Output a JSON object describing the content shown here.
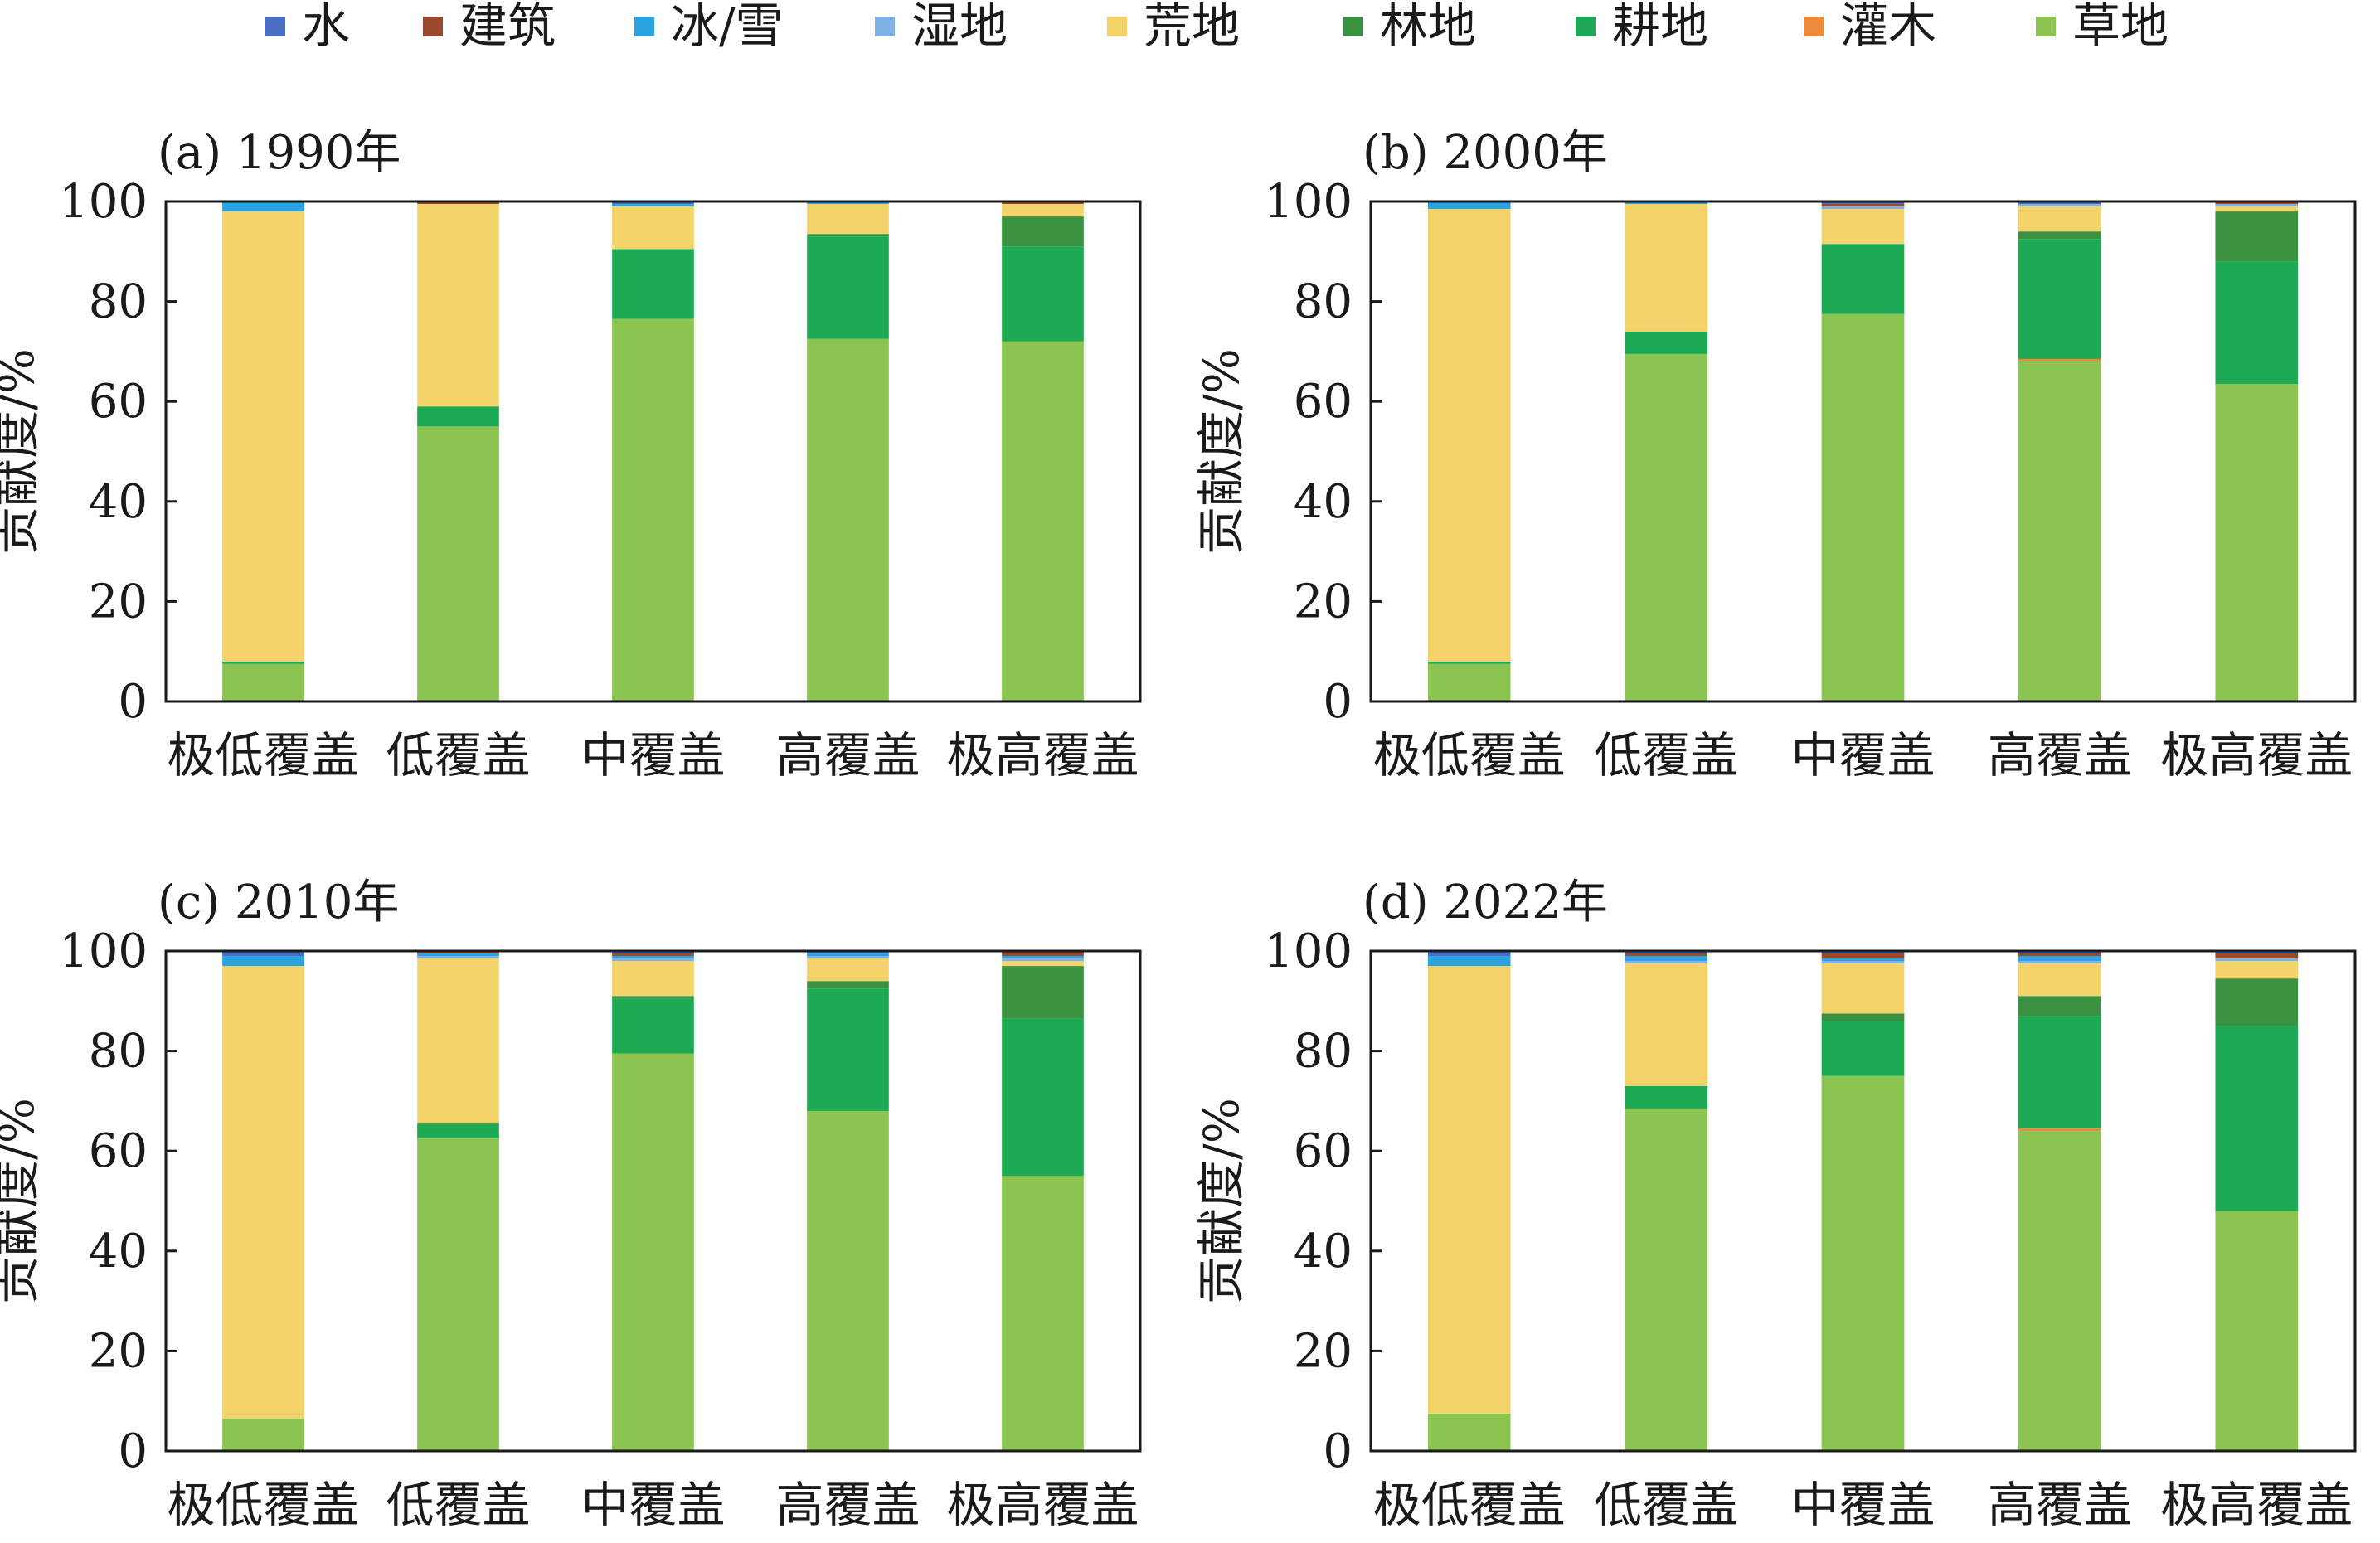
{
  "legend": [
    {
      "name": "水",
      "color": "#4a6fc2"
    },
    {
      "name": "建筑",
      "color": "#9a4a2c"
    },
    {
      "name": "冰/雪",
      "color": "#2aa3e0"
    },
    {
      "name": "湿地",
      "color": "#7fb2e6"
    },
    {
      "name": "荒地",
      "color": "#f5d36b"
    },
    {
      "name": "林地",
      "color": "#3a9140"
    },
    {
      "name": "耕地",
      "color": "#1eaa55"
    },
    {
      "name": "灌木",
      "color": "#ee8a3a"
    },
    {
      "name": "草地",
      "color": "#8cc452"
    }
  ],
  "chart_data": [
    {
      "type": "bar",
      "stacked": true,
      "title": "(a) 1990年",
      "ylabel": "贡献度/%",
      "ylim": [
        0,
        100
      ],
      "yticks": [
        0,
        20,
        40,
        60,
        80,
        100
      ],
      "categories": [
        "极低覆盖",
        "低覆盖",
        "中覆盖",
        "高覆盖",
        "极高覆盖"
      ],
      "series": [
        {
          "name": "草地",
          "values": [
            7.5,
            55,
            76.5,
            72.5,
            72
          ]
        },
        {
          "name": "灌木",
          "values": [
            0,
            0,
            0,
            0,
            0
          ]
        },
        {
          "name": "耕地",
          "values": [
            0.5,
            4,
            14,
            20.5,
            19
          ]
        },
        {
          "name": "林地",
          "values": [
            0,
            0,
            0,
            0.5,
            6
          ]
        },
        {
          "name": "荒地",
          "values": [
            90,
            40.5,
            8.5,
            6,
            2.5
          ]
        },
        {
          "name": "湿地",
          "values": [
            0,
            0,
            0,
            0,
            0
          ]
        },
        {
          "name": "冰/雪",
          "values": [
            2,
            0,
            0.5,
            0.5,
            0
          ]
        },
        {
          "name": "建筑",
          "values": [
            0,
            0.5,
            0,
            0,
            0.5
          ]
        },
        {
          "name": "水",
          "values": [
            0,
            0,
            0.5,
            0,
            0
          ]
        }
      ]
    },
    {
      "type": "bar",
      "stacked": true,
      "title": "(b) 2000年",
      "ylabel": "贡献度/%",
      "ylim": [
        0,
        100
      ],
      "yticks": [
        0,
        20,
        40,
        60,
        80,
        100
      ],
      "categories": [
        "极低覆盖",
        "低覆盖",
        "中覆盖",
        "高覆盖",
        "极高覆盖"
      ],
      "series": [
        {
          "name": "草地",
          "values": [
            7.5,
            69.5,
            77.5,
            68,
            63.5
          ]
        },
        {
          "name": "灌木",
          "values": [
            0,
            0,
            0,
            0.5,
            0
          ]
        },
        {
          "name": "耕地",
          "values": [
            0.5,
            4.5,
            14,
            24,
            24.5
          ]
        },
        {
          "name": "林地",
          "values": [
            0,
            0,
            0,
            1.5,
            10
          ]
        },
        {
          "name": "荒地",
          "values": [
            90.5,
            25.5,
            7,
            5,
            1
          ]
        },
        {
          "name": "湿地",
          "values": [
            0,
            0,
            0.5,
            0.5,
            0.5
          ]
        },
        {
          "name": "冰/雪",
          "values": [
            1.5,
            0.5,
            0,
            0,
            0
          ]
        },
        {
          "name": "建筑",
          "values": [
            0,
            0,
            0.5,
            0,
            0.5
          ]
        },
        {
          "name": "水",
          "values": [
            0,
            0,
            0.5,
            0.5,
            0
          ]
        }
      ]
    },
    {
      "type": "bar",
      "stacked": true,
      "title": "(c) 2010年",
      "ylabel": "贡献度/%",
      "ylim": [
        0,
        100
      ],
      "yticks": [
        0,
        20,
        40,
        60,
        80,
        100
      ],
      "categories": [
        "极低覆盖",
        "低覆盖",
        "中覆盖",
        "高覆盖",
        "极高覆盖"
      ],
      "series": [
        {
          "name": "草地",
          "values": [
            6.5,
            62.5,
            79.5,
            68,
            55
          ]
        },
        {
          "name": "灌木",
          "values": [
            0,
            0,
            0,
            0,
            0
          ]
        },
        {
          "name": "耕地",
          "values": [
            0,
            3,
            11,
            24.5,
            31.5
          ]
        },
        {
          "name": "林地",
          "values": [
            0,
            0,
            0.5,
            1.5,
            10.5
          ]
        },
        {
          "name": "荒地",
          "values": [
            90.5,
            33,
            7,
            4.5,
            1
          ]
        },
        {
          "name": "湿地",
          "values": [
            0,
            0.5,
            0.5,
            0.5,
            0.5
          ]
        },
        {
          "name": "冰/雪",
          "values": [
            2,
            0.5,
            0.5,
            0.5,
            0.5
          ]
        },
        {
          "name": "建筑",
          "values": [
            0,
            0.5,
            0.5,
            0,
            1
          ]
        },
        {
          "name": "水",
          "values": [
            1,
            0,
            0.5,
            0.5,
            0
          ]
        }
      ]
    },
    {
      "type": "bar",
      "stacked": true,
      "title": "(d) 2022年",
      "ylabel": "贡献度/%",
      "ylim": [
        0,
        100
      ],
      "yticks": [
        0,
        20,
        40,
        60,
        80,
        100
      ],
      "categories": [
        "极低覆盖",
        "低覆盖",
        "中覆盖",
        "高覆盖",
        "极高覆盖"
      ],
      "series": [
        {
          "name": "草地",
          "values": [
            7.5,
            68.5,
            75,
            64,
            48
          ]
        },
        {
          "name": "灌木",
          "values": [
            0,
            0,
            0,
            0.5,
            0
          ]
        },
        {
          "name": "耕地",
          "values": [
            0,
            4.5,
            11,
            22.5,
            37
          ]
        },
        {
          "name": "林地",
          "values": [
            0,
            0,
            1.5,
            4,
            9.5
          ]
        },
        {
          "name": "荒地",
          "values": [
            89.5,
            24.5,
            10,
            6.5,
            3.5
          ]
        },
        {
          "name": "湿地",
          "values": [
            0,
            0.5,
            0.5,
            0.5,
            0.5
          ]
        },
        {
          "name": "冰/雪",
          "values": [
            2,
            1,
            0.5,
            1,
            0
          ]
        },
        {
          "name": "建筑",
          "values": [
            0,
            0.5,
            1,
            0.5,
            1
          ]
        },
        {
          "name": "水",
          "values": [
            1,
            0.5,
            0.5,
            0.5,
            0.5
          ]
        }
      ]
    }
  ]
}
